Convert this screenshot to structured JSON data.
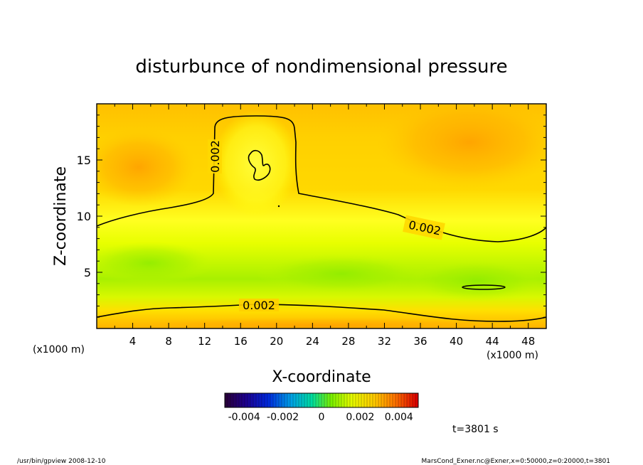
{
  "chart_data": {
    "type": "heatmap",
    "title": "disturbunce of nondimensional pressure",
    "xlabel": "X-coordinate",
    "ylabel": "Z-coordinate",
    "x_unit_left": "(x1000 m)",
    "x_unit_right": "(x1000 m)",
    "xlim": [
      0,
      50
    ],
    "ylim": [
      0,
      20
    ],
    "xticks": [
      4,
      8,
      12,
      16,
      20,
      24,
      28,
      32,
      36,
      40,
      44,
      48
    ],
    "yticks": [
      5,
      10,
      15
    ],
    "contour_labels": [
      "0.002",
      "0.002",
      "0.002"
    ],
    "contour_level": 0.002,
    "colorbar": {
      "range": [
        -0.005,
        0.005
      ],
      "tick_labels": [
        "-0.004",
        "-0.002",
        "0",
        "0.002",
        "0.004"
      ],
      "ticks": [
        -0.004,
        -0.002,
        0,
        0.002,
        0.004
      ]
    },
    "colors": {
      "field_low": "#9cf000",
      "field_mid": "#ffff00",
      "field_high": "#ffa000"
    }
  },
  "time_label": "t=3801 s",
  "footer_left": "/usr/bin/gpview  2008-12-10",
  "footer_right": "MarsCond_Exner.nc@Exner,x=0:50000,z=0:20000,t=3801"
}
